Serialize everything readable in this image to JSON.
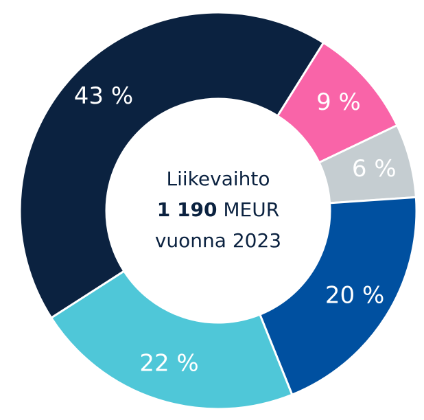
{
  "chart_data": {
    "type": "donut",
    "categories": [
      null,
      null,
      null,
      null,
      null
    ],
    "values": [
      43,
      9,
      6,
      20,
      22
    ],
    "value_labels": [
      "43 %",
      "9 %",
      "6 %",
      "20 %",
      "22 %"
    ],
    "colors": [
      "#0b2240",
      "#f964a8",
      "#c5cdd1",
      "#0050a0",
      "#4fc7d8"
    ],
    "center_text": {
      "line1": "Liikevaihto",
      "total": "1 190",
      "unit": "MEUR",
      "line3": "vuonna 2023"
    }
  }
}
